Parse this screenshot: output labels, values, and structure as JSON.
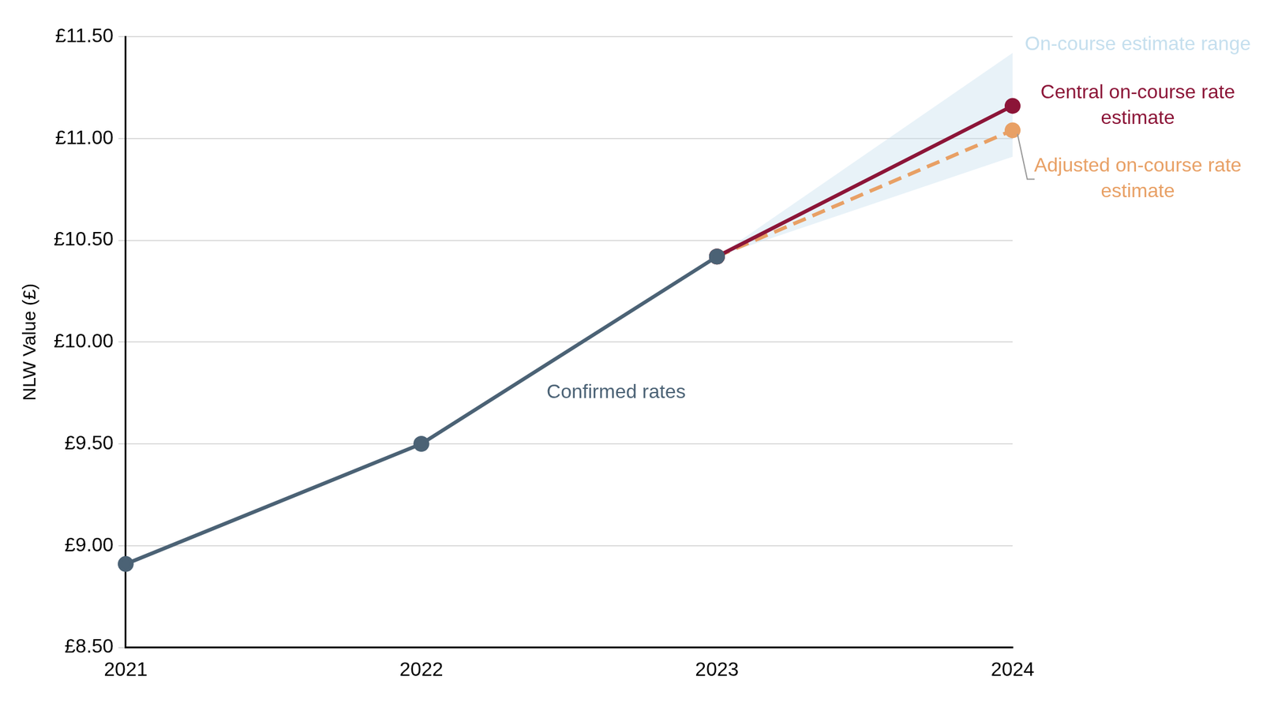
{
  "chart_data": {
    "type": "line",
    "y_label": "NLW Value (£)",
    "categories": [
      "2021",
      "2022",
      "2023",
      "2024"
    ],
    "ylim": [
      8.5,
      11.5
    ],
    "yticks": [
      {
        "value": 8.5,
        "label": "£8.50"
      },
      {
        "value": 9.0,
        "label": "£9.00"
      },
      {
        "value": 9.5,
        "label": "£9.50"
      },
      {
        "value": 10.0,
        "label": "£10.00"
      },
      {
        "value": 10.5,
        "label": "£10.50"
      },
      {
        "value": 11.0,
        "label": "£11.00"
      },
      {
        "value": 11.5,
        "label": "£11.50"
      }
    ],
    "grid": true,
    "series": [
      {
        "name": "Confirmed rates",
        "color": "#4b6275",
        "values": [
          8.91,
          9.5,
          10.42,
          null
        ],
        "line_style": "solid",
        "marker": "circle"
      },
      {
        "name": "Central on-course rate estimate",
        "color": "#8c1538",
        "values": [
          null,
          null,
          10.42,
          11.16
        ],
        "line_style": "solid",
        "marker": "circle"
      },
      {
        "name": "Adjusted on-course rate estimate",
        "color": "#e8a065",
        "values": [
          null,
          null,
          10.42,
          11.04
        ],
        "line_style": "dashed",
        "marker": "circle"
      },
      {
        "name": "On-course estimate range",
        "type": "area",
        "color": "#c5dfee",
        "values": [
          null,
          null,
          10.42,
          11.42
        ],
        "lower": [
          null,
          null,
          10.42,
          10.91
        ]
      }
    ]
  }
}
